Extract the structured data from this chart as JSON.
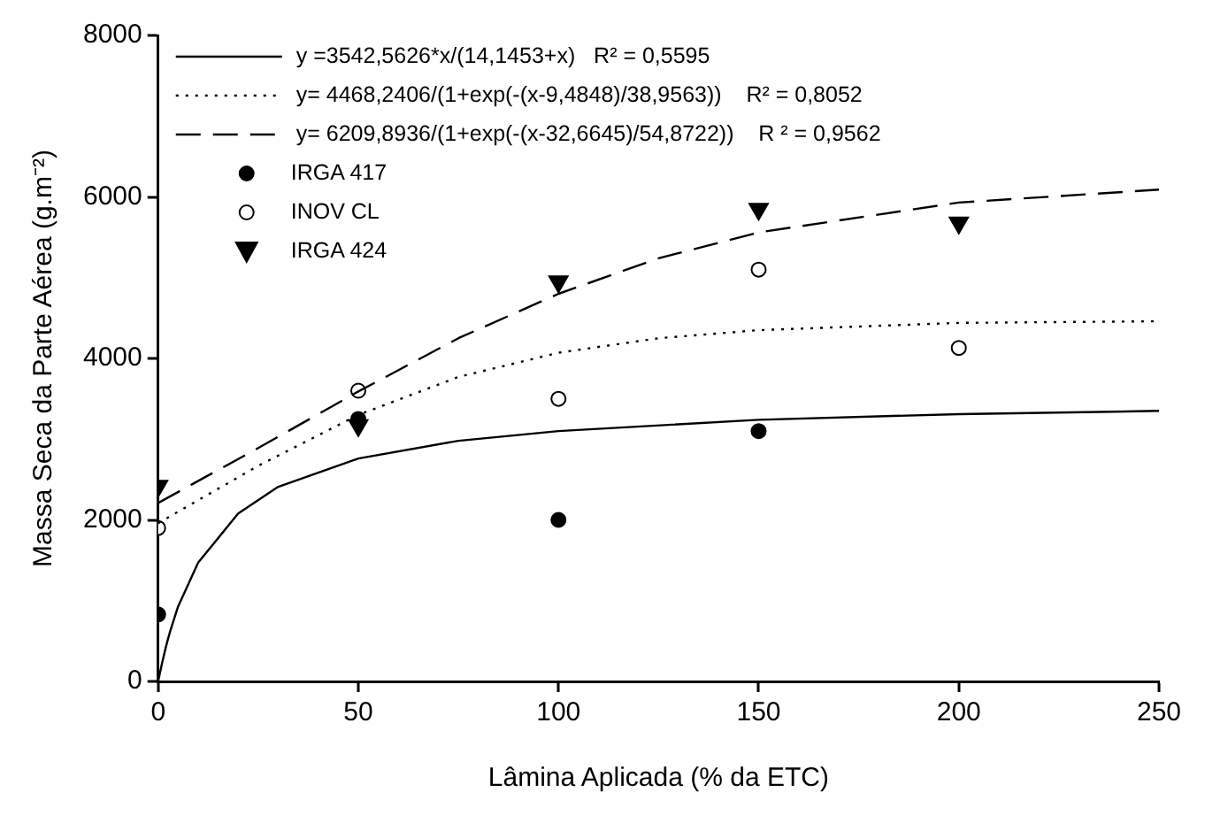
{
  "chart_data": {
    "type": "scatter",
    "xlabel": "Lâmina Aplicada (% da ETC)",
    "ylabel": "Massa Seca da Parte Aérea (g.m⁻²)",
    "xlim": [
      0,
      250
    ],
    "xticks": [
      0,
      50,
      100,
      150,
      200,
      250
    ],
    "ylim": [
      0,
      8000
    ],
    "yticks": [
      0,
      2000,
      4000,
      6000,
      8000
    ],
    "grid": false,
    "legend": "top left",
    "series": [
      {
        "name": "y =3542,5626*x/(14,1453+x)   R² = 0,5595",
        "type": "line",
        "line_style": "solid",
        "marker": "none",
        "color": "#000000",
        "x": [
          0,
          1,
          2,
          3,
          5,
          10,
          20,
          30,
          50,
          75,
          100,
          150,
          200,
          250
        ],
        "values": [
          0,
          230,
          440,
          620,
          930,
          1470,
          2080,
          2410,
          2760,
          2980,
          3100,
          3240,
          3310,
          3350
        ]
      },
      {
        "name": "y= 4468,2406/(1+exp(-(x-9,4848)/38,9563))    R² = 0,8052",
        "type": "line",
        "line_style": "dotted",
        "marker": "none",
        "color": "#000000",
        "x": [
          0,
          25,
          50,
          75,
          100,
          125,
          150,
          200,
          250
        ],
        "values": [
          1960,
          2670,
          3300,
          3770,
          4070,
          4250,
          4350,
          4440,
          4460
        ]
      },
      {
        "name": "y= 6209,8936/(1+exp(-(x-32,6645)/54,8722))    R ² = 0,9562",
        "type": "line",
        "line_style": "dashed",
        "marker": "none",
        "color": "#000000",
        "x": [
          0,
          25,
          50,
          75,
          100,
          125,
          150,
          200,
          250
        ],
        "values": [
          2210,
          2890,
          3590,
          4250,
          4800,
          5240,
          5560,
          5930,
          6090
        ]
      },
      {
        "name": "IRGA 417",
        "type": "scatter",
        "marker": "circle",
        "color": "#000000",
        "x": [
          0,
          50,
          100,
          150
        ],
        "values": [
          830,
          3250,
          2000,
          3100
        ]
      },
      {
        "name": "INOV CL",
        "type": "scatter",
        "marker": "circle",
        "color": "#ffffff",
        "x": [
          0,
          50,
          100,
          150,
          200
        ],
        "values": [
          1900,
          3600,
          3500,
          5100,
          4130
        ]
      },
      {
        "name": "IRGA 424",
        "type": "scatter",
        "marker": "triangle",
        "color": "#000000",
        "x": [
          0,
          50,
          100,
          150,
          200
        ],
        "values": [
          2420,
          3170,
          4950,
          5850,
          5680
        ]
      }
    ]
  }
}
